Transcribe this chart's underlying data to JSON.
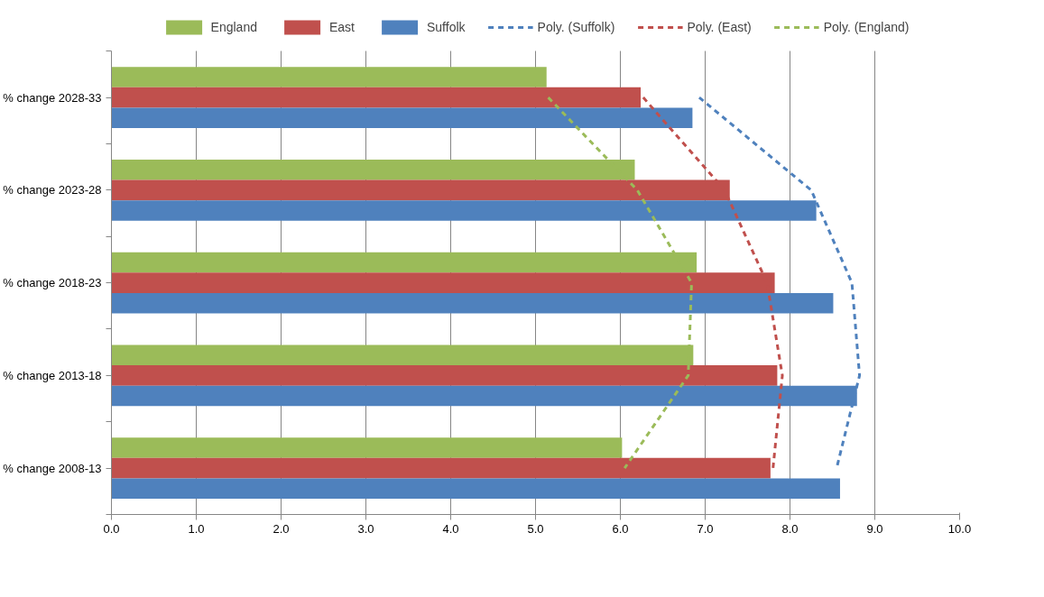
{
  "chart_data": {
    "type": "bar",
    "orientation": "horizontal",
    "categories": [
      "% change 2028-33",
      "% change 2023-28",
      "% change 2018-23",
      "% change 2013-18",
      "% change 2008-13"
    ],
    "series": [
      {
        "name": "England",
        "color": "#9bbb59",
        "values": [
          5.13,
          6.17,
          6.9,
          6.86,
          6.02
        ]
      },
      {
        "name": "East",
        "color": "#c0504d",
        "values": [
          6.24,
          7.29,
          7.82,
          7.85,
          7.77
        ]
      },
      {
        "name": "Suffolk",
        "color": "#4f81bd",
        "values": [
          6.85,
          8.31,
          8.51,
          8.79,
          8.59
        ]
      },
      {
        "name": "Poly. (Suffolk)",
        "type": "line",
        "line_style": "dashed",
        "color": "#4f81bd",
        "values": [
          6.93,
          8.25,
          8.73,
          8.82,
          8.55
        ]
      },
      {
        "name": "Poly. (East)",
        "type": "line",
        "line_style": "dashed",
        "color": "#c0504d",
        "values": [
          6.27,
          7.23,
          7.73,
          7.91,
          7.8
        ]
      },
      {
        "name": "Poly. (England)",
        "type": "line",
        "line_style": "dashed",
        "color": "#9bbb59",
        "values": [
          5.15,
          6.2,
          6.84,
          6.8,
          6.05
        ]
      }
    ],
    "xlim": [
      0,
      10
    ],
    "xticks": [
      {
        "value": 0,
        "label": "0.0"
      },
      {
        "value": 1,
        "label": "1.0"
      },
      {
        "value": 2,
        "label": "2.0"
      },
      {
        "value": 3,
        "label": "3.0"
      },
      {
        "value": 4,
        "label": "4.0"
      },
      {
        "value": 5,
        "label": "5.0"
      },
      {
        "value": 6,
        "label": "6.0"
      },
      {
        "value": 7,
        "label": "7.0"
      },
      {
        "value": 8,
        "label": "8.0"
      },
      {
        "value": 9,
        "label": "9.0"
      },
      {
        "value": 10,
        "label": "10.0"
      }
    ],
    "grid": "x",
    "legend": "top"
  }
}
